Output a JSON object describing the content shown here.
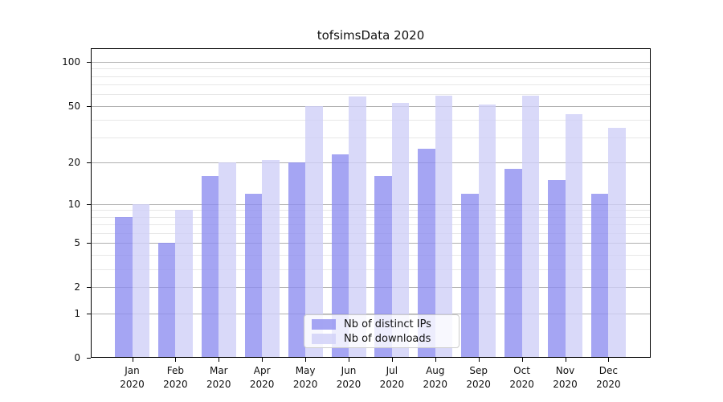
{
  "title": "tofsimsData 2020",
  "year": "2020",
  "chart_data": {
    "type": "bar",
    "title": "tofsimsData 2020",
    "categories": [
      "Jan 2020",
      "Feb 2020",
      "Mar 2020",
      "Apr 2020",
      "May 2020",
      "Jun 2020",
      "Jul 2020",
      "Aug 2020",
      "Sep 2020",
      "Oct 2020",
      "Nov 2020",
      "Dec 2020"
    ],
    "series": [
      {
        "name": "Nb of distinct IPs",
        "color": "#8f8ff0",
        "values": [
          8,
          5,
          16,
          12,
          20,
          23,
          16,
          25,
          12,
          18,
          15,
          12
        ]
      },
      {
        "name": "Nb of downloads",
        "color": "#d0d0f8",
        "values": [
          10,
          9,
          20,
          21,
          50,
          58,
          52,
          59,
          51,
          59,
          44,
          35
        ]
      }
    ],
    "xlabel": "",
    "ylabel": "",
    "yscale": "symlog",
    "ylim": [
      0,
      124
    ],
    "yticks": [
      0,
      1,
      2,
      5,
      10,
      20,
      50,
      100
    ],
    "minor_gridlines": [
      3,
      4,
      6,
      7,
      8,
      9,
      30,
      40,
      60,
      70,
      80,
      90
    ],
    "grid": true,
    "legend_position": "lower center",
    "colors": {
      "major_grid": "#b0b0b0",
      "minor_grid": "#e7e7e7",
      "axis": "#000000",
      "text": "#111111",
      "bar_opacity": 0.8
    }
  }
}
